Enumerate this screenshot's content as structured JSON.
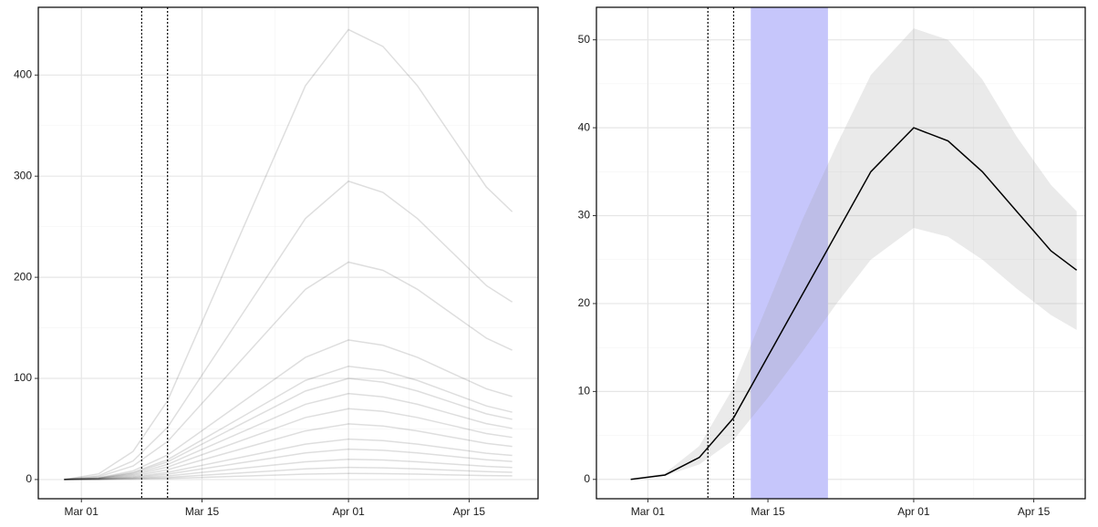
{
  "chart_data": [
    {
      "type": "line",
      "x": [
        "Feb 27",
        "Mar 03",
        "Mar 07",
        "Mar 11",
        "Mar 15",
        "Mar 19",
        "Mar 23",
        "Mar 27",
        "Apr 01",
        "Apr 05",
        "Apr 09",
        "Apr 13",
        "Apr 17",
        "Apr 20"
      ],
      "series": [
        {
          "color": "#000000",
          "values": [
            0,
            5.6,
            27.8,
            77.9,
            155.8,
            233.6,
            311.5,
            389.4,
            445,
            428.3,
            389.4,
            339.3,
            289.3,
            264.8
          ]
        },
        {
          "color": "#000000",
          "values": [
            0,
            3.7,
            18.4,
            51.6,
            103.3,
            154.9,
            206.5,
            258.1,
            295,
            283.9,
            258.1,
            224.9,
            191.8,
            175.5
          ]
        },
        {
          "color": "#000000",
          "values": [
            0,
            2.7,
            13.4,
            37.6,
            75.3,
            112.9,
            150.5,
            188.1,
            215,
            206.9,
            188.1,
            163.9,
            139.8,
            127.9
          ]
        },
        {
          "color": "#000000",
          "values": [
            0,
            1.7,
            8.6,
            24.2,
            48.3,
            72.5,
            96.6,
            120.8,
            138,
            132.8,
            120.8,
            105.2,
            89.7,
            82.1
          ]
        },
        {
          "color": "#000000",
          "values": [
            0,
            1.4,
            7,
            19.6,
            39.2,
            58.8,
            78.4,
            98,
            112,
            107.8,
            98,
            85.4,
            72.8,
            66.6
          ]
        },
        {
          "color": "#000000",
          "values": [
            0,
            1.3,
            6.3,
            17.5,
            35,
            52.5,
            70,
            87.5,
            100,
            96.3,
            87.5,
            76.3,
            65,
            59.5
          ]
        },
        {
          "color": "#000000",
          "values": [
            0,
            1.1,
            5.3,
            14.9,
            29.8,
            44.6,
            59.5,
            74.4,
            85,
            81.8,
            74.4,
            64.8,
            55.3,
            50.6
          ]
        },
        {
          "color": "#000000",
          "values": [
            0,
            0.9,
            4.4,
            12.3,
            24.5,
            36.8,
            49,
            61.3,
            70,
            67.4,
            61.3,
            53.4,
            45.5,
            41.7
          ]
        },
        {
          "color": "#000000",
          "values": [
            0,
            0.7,
            3.4,
            9.6,
            19.3,
            28.9,
            38.5,
            48.1,
            55,
            52.9,
            48.1,
            41.9,
            35.8,
            32.7
          ]
        },
        {
          "color": "#000000",
          "values": [
            0,
            0.5,
            2.5,
            7,
            14,
            21,
            28,
            35,
            40,
            38.5,
            35,
            30.5,
            26,
            23.8
          ]
        },
        {
          "color": "#000000",
          "values": [
            0,
            0.4,
            1.9,
            5.3,
            10.5,
            15.8,
            21,
            26.3,
            30,
            28.9,
            26.3,
            22.9,
            19.5,
            17.9
          ]
        },
        {
          "color": "#000000",
          "values": [
            0,
            0.3,
            1.3,
            3.5,
            7,
            10.5,
            14,
            17.5,
            20,
            19.3,
            17.5,
            15.3,
            13,
            11.9
          ]
        },
        {
          "color": "#000000",
          "values": [
            0,
            0.2,
            0.8,
            2.1,
            4.2,
            6.3,
            8.4,
            10.5,
            12,
            11.6,
            10.5,
            9.2,
            7.8,
            7.1
          ]
        },
        {
          "color": "#000000",
          "values": [
            0,
            0.1,
            0.4,
            1.1,
            2.1,
            3.2,
            4.2,
            5.3,
            6,
            5.8,
            5.3,
            4.6,
            3.9,
            3.6
          ]
        }
      ],
      "line_opacity": 0.13,
      "xlim": [
        "Feb 24",
        "Apr 23"
      ],
      "xticks": [
        "Mar 01",
        "Mar 15",
        "Apr 01",
        "Apr 15"
      ],
      "ylim": [
        -19,
        467
      ],
      "yticks": [
        0,
        100,
        200,
        300,
        400
      ],
      "vlines": [
        "Mar 08",
        "Mar 11"
      ],
      "grid": true
    },
    {
      "type": "line",
      "x": [
        "Feb 27",
        "Mar 03",
        "Mar 07",
        "Mar 11",
        "Mar 15",
        "Mar 19",
        "Mar 23",
        "Mar 27",
        "Apr 01",
        "Apr 05",
        "Apr 09",
        "Apr 13",
        "Apr 17",
        "Apr 20"
      ],
      "series": [
        {
          "color": "#000000",
          "values": [
            0,
            0.5,
            2.5,
            7,
            14,
            21,
            28,
            35,
            40,
            38.5,
            35,
            30.5,
            26,
            23.8
          ]
        }
      ],
      "band": {
        "color": "#a0a0a0",
        "lower": [
          0,
          0.4,
          1.7,
          4.5,
          9.3,
          14.5,
          20,
          25,
          28.6,
          27.6,
          25,
          21.7,
          18.7,
          17
        ],
        "upper": [
          0,
          0.7,
          3.8,
          10.5,
          20,
          29.5,
          38,
          46,
          51.3,
          50,
          45.5,
          39,
          33.5,
          30.5
        ]
      },
      "shade": {
        "color": "#c6c6fb",
        "range": [
          "Mar 13",
          "Mar 22"
        ]
      },
      "line_opacity": 1,
      "xlim": [
        "Feb 23",
        "Apr 21"
      ],
      "xticks": [
        "Mar 01",
        "Mar 15",
        "Apr 01",
        "Apr 15"
      ],
      "ylim": [
        -2.2,
        53.7
      ],
      "yticks": [
        0,
        10,
        20,
        30,
        40,
        50
      ],
      "vlines": [
        "Mar 08",
        "Mar 11"
      ],
      "grid": true
    }
  ]
}
